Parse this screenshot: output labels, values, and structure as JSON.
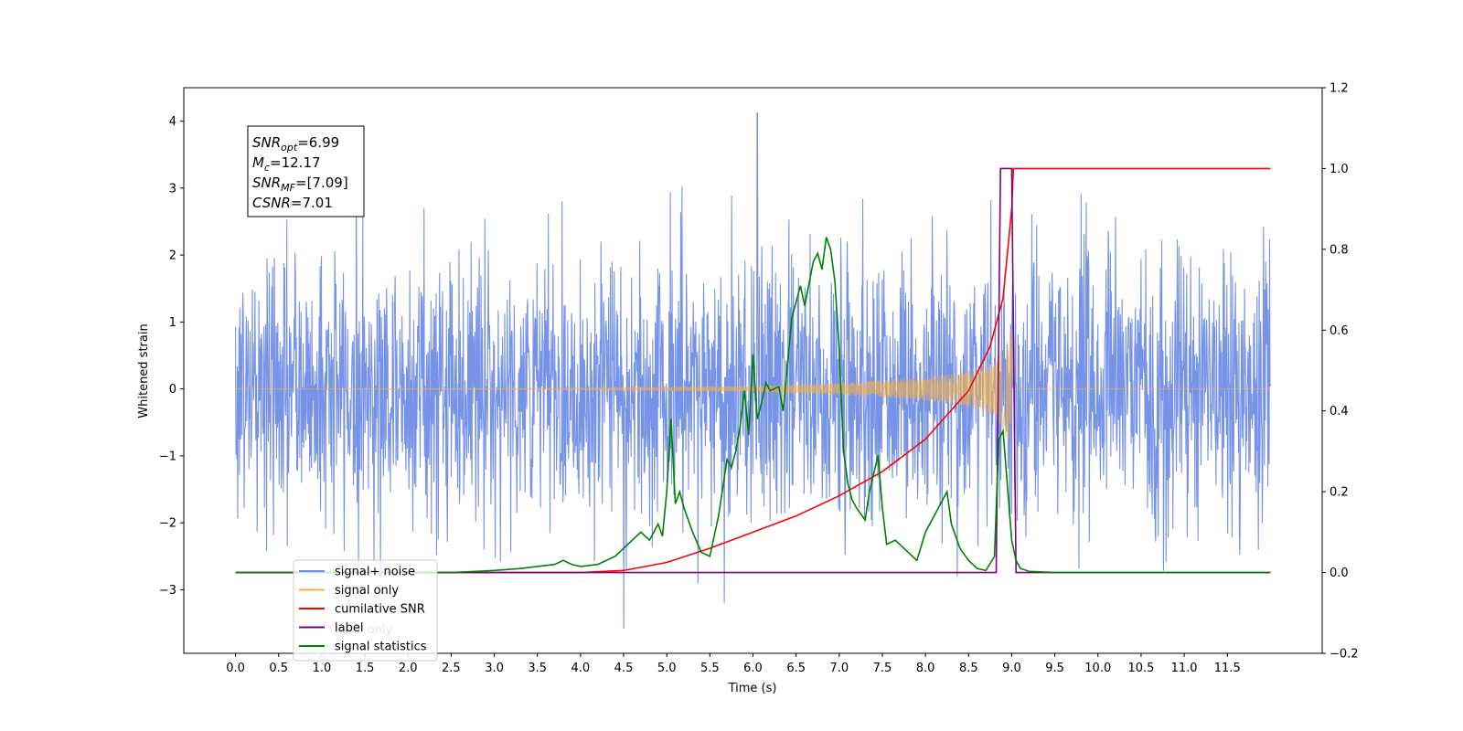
{
  "chart_data": {
    "type": "line",
    "xlabel": "Time (s)",
    "ylabel_left": "Whitened strain",
    "xlim": [
      -0.6,
      12.6
    ],
    "ylim_left": [
      -3.95,
      4.5
    ],
    "ylim_right": [
      -0.2,
      1.2
    ],
    "x_ticks": [
      0.0,
      0.5,
      1.0,
      1.5,
      2.0,
      2.5,
      3.0,
      3.5,
      4.0,
      4.5,
      5.0,
      5.5,
      6.0,
      6.5,
      7.0,
      7.5,
      8.0,
      8.5,
      9.0,
      9.5,
      10.0,
      10.5,
      11.0,
      11.5
    ],
    "x_tick_labels": [
      "0.0",
      "0.5",
      "1.0",
      "1.5",
      "2.0",
      "2.5",
      "3.0",
      "3.5",
      "4.0",
      "4.5",
      "5.0",
      "5.5",
      "6.0",
      "6.5",
      "7.0",
      "7.5",
      "8.0",
      "8.5",
      "9.0",
      "9.5",
      "10.0",
      "10.5",
      "11.0",
      "11.5"
    ],
    "y_left_ticks": [
      -3,
      -2,
      -1,
      0,
      1,
      2,
      3,
      4
    ],
    "y_left_tick_labels": [
      "−3",
      "−2",
      "−1",
      "0",
      "1",
      "2",
      "3",
      "4"
    ],
    "y_right_ticks": [
      -0.2,
      0.0,
      0.2,
      0.4,
      0.6,
      0.8,
      1.0,
      1.2
    ],
    "y_right_tick_labels": [
      "−0.2",
      "0.0",
      "0.2",
      "0.4",
      "0.6",
      "0.8",
      "1.0",
      "1.2"
    ],
    "grid": false,
    "legend_position": "lower-left",
    "annotation": [
      {
        "base": "SNR",
        "sub": "opt",
        "value": "=6.99"
      },
      {
        "base": "M",
        "sub": "c",
        "value": "=12.17"
      },
      {
        "base": "SNR",
        "sub": "MF",
        "value": "=[7.09]"
      },
      {
        "base": "CSNR",
        "sub": "",
        "value": "=7.01"
      }
    ],
    "series": [
      {
        "name": "signal+ noise",
        "axis": "left",
        "color": "#6b8ae6",
        "noise_sigma": 1.0,
        "x_range": [
          0.0,
          12.0
        ],
        "peak_max": 4.12,
        "peak_min": -3.58
      },
      {
        "name": "signal only",
        "axis": "left",
        "color": "#f5b042",
        "envelope_x": [
          0.0,
          4.0,
          6.0,
          7.0,
          8.0,
          8.5,
          8.8,
          9.0,
          9.02,
          12.0
        ],
        "envelope_y": [
          0.0,
          0.01,
          0.04,
          0.09,
          0.17,
          0.27,
          0.4,
          0.9,
          0.0,
          0.0
        ]
      },
      {
        "name": "cumilative SNR",
        "axis": "right",
        "color": "#ff0000",
        "x": [
          0.0,
          4.0,
          4.5,
          5.0,
          5.5,
          6.0,
          6.5,
          7.0,
          7.5,
          8.0,
          8.5,
          8.75,
          8.9,
          9.0,
          9.02,
          12.0
        ],
        "y": [
          0.0,
          0.0,
          0.005,
          0.025,
          0.06,
          0.1,
          0.14,
          0.19,
          0.25,
          0.33,
          0.45,
          0.56,
          0.68,
          0.9,
          1.0,
          1.0
        ]
      },
      {
        "name": "label",
        "axis": "right",
        "color": "#800080",
        "x": [
          0.0,
          8.82,
          8.87,
          9.0,
          9.05,
          12.0
        ],
        "y": [
          0.0,
          0.0,
          1.0,
          1.0,
          0.0,
          0.0
        ]
      },
      {
        "name": "signal statistics",
        "axis": "right",
        "color": "#008000",
        "x": [
          0.0,
          2.5,
          3.0,
          3.3,
          3.5,
          3.7,
          3.8,
          3.9,
          4.0,
          4.2,
          4.4,
          4.5,
          4.6,
          4.7,
          4.8,
          4.9,
          4.95,
          5.0,
          5.05,
          5.1,
          5.15,
          5.2,
          5.3,
          5.4,
          5.5,
          5.6,
          5.7,
          5.75,
          5.8,
          5.85,
          5.9,
          5.95,
          6.0,
          6.05,
          6.1,
          6.15,
          6.2,
          6.3,
          6.35,
          6.45,
          6.55,
          6.6,
          6.7,
          6.75,
          6.8,
          6.85,
          6.9,
          6.95,
          7.0,
          7.05,
          7.1,
          7.15,
          7.2,
          7.3,
          7.35,
          7.45,
          7.5,
          7.55,
          7.65,
          7.8,
          7.9,
          8.0,
          8.1,
          8.2,
          8.25,
          8.3,
          8.4,
          8.5,
          8.6,
          8.7,
          8.8,
          8.85,
          8.9,
          9.0,
          9.05,
          9.1,
          9.2,
          9.5,
          12.0
        ],
        "y": [
          0.0,
          0.0,
          0.005,
          0.01,
          0.015,
          0.02,
          0.03,
          0.02,
          0.015,
          0.02,
          0.04,
          0.06,
          0.08,
          0.1,
          0.08,
          0.12,
          0.09,
          0.2,
          0.38,
          0.17,
          0.2,
          0.16,
          0.1,
          0.05,
          0.04,
          0.14,
          0.28,
          0.26,
          0.3,
          0.36,
          0.45,
          0.34,
          0.54,
          0.38,
          0.42,
          0.47,
          0.45,
          0.46,
          0.4,
          0.63,
          0.71,
          0.66,
          0.77,
          0.79,
          0.75,
          0.83,
          0.8,
          0.72,
          0.55,
          0.3,
          0.22,
          0.18,
          0.16,
          0.13,
          0.2,
          0.29,
          0.16,
          0.07,
          0.08,
          0.05,
          0.03,
          0.1,
          0.14,
          0.18,
          0.2,
          0.12,
          0.06,
          0.03,
          0.01,
          0.005,
          0.04,
          0.33,
          0.35,
          0.08,
          0.03,
          0.01,
          0.003,
          0.0,
          0.0
        ]
      }
    ],
    "legend": [
      {
        "label": "signal+ noise",
        "color": "#6b8ae6"
      },
      {
        "label": "signal only",
        "color": "#f5b042"
      },
      {
        "label": "cumilative SNR",
        "color": "#ff0000"
      },
      {
        "label": "label",
        "color": "#800080"
      },
      {
        "label": "signal statistics",
        "color": "#008000"
      }
    ],
    "hidden_label": "label only"
  }
}
